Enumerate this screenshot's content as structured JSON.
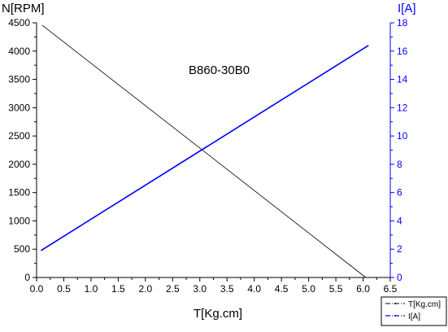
{
  "chart_data": {
    "type": "line",
    "annotation": "B860-30B0",
    "xlabel": "T[Kg.cm]",
    "ylabel_left": "N[RPM]",
    "ylabel_right": "I[A]",
    "xlim": [
      0.0,
      6.5
    ],
    "ylim_left": [
      0,
      4500
    ],
    "ylim_right": [
      0,
      18
    ],
    "x_ticks": [
      "0.0",
      "0.5",
      "1.0",
      "1.5",
      "2.0",
      "2.5",
      "3.0",
      "3.5",
      "4.0",
      "4.5",
      "5.0",
      "5.5",
      "6.0",
      "6.5"
    ],
    "y_left_ticks": [
      "0",
      "500",
      "1000",
      "1500",
      "2000",
      "2500",
      "3000",
      "3500",
      "4000",
      "4500"
    ],
    "y_right_ticks": [
      "0",
      "2",
      "4",
      "6",
      "8",
      "10",
      "12",
      "14",
      "16",
      "18"
    ],
    "grid": false,
    "legend_position": "bottom-right",
    "series": [
      {
        "name": "T[Kg.cm]",
        "axis": "left",
        "color": "#000000",
        "points": [
          [
            0.1,
            4460
          ],
          [
            6.05,
            0
          ]
        ]
      },
      {
        "name": "I[A]",
        "axis": "right",
        "color": "#0000ff",
        "points": [
          [
            0.08,
            1.9
          ],
          [
            6.1,
            16.4
          ]
        ]
      }
    ]
  }
}
